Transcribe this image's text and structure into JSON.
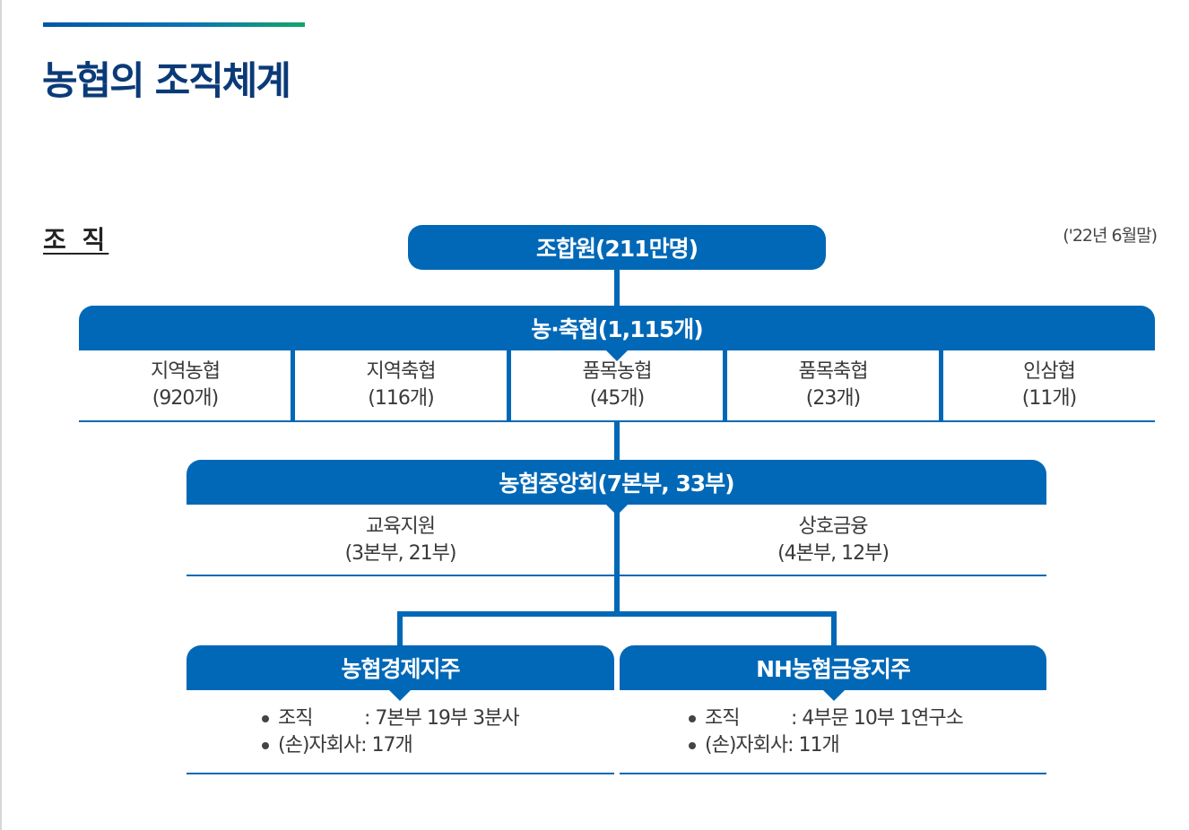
{
  "header": {
    "title": "농협의 조직체계",
    "section_label": "조 직",
    "date_note": "('22년 6월말)"
  },
  "chart": {
    "members": "조합원(211만명)",
    "coops": {
      "label": "농·축협(1,115개)",
      "units": [
        {
          "name": "지역농협",
          "count": "(920개)"
        },
        {
          "name": "지역축협",
          "count": "(116개)"
        },
        {
          "name": "품목농협",
          "count": "(45개)"
        },
        {
          "name": "품목축협",
          "count": "(23개)"
        },
        {
          "name": "인삼협",
          "count": "(11개)"
        }
      ]
    },
    "central": {
      "label": "농협중앙회(7본부, 33부)",
      "divisions": [
        {
          "name": "교육지원",
          "detail": "(3본부, 21부)"
        },
        {
          "name": "상호금융",
          "detail": "(4본부, 12부)"
        }
      ]
    },
    "holdings": [
      {
        "label": "농협경제지주",
        "org_key": "조직",
        "org_value": ": 7본부 19부 3분사",
        "sub_key": "(손)자회사",
        "sub_value": ": 17개"
      },
      {
        "label": "NH농협금융지주",
        "org_key": "조직",
        "org_value": ": 4부문 10부 1연구소",
        "sub_key": "(손)자회사",
        "sub_value": ": 11개"
      }
    ]
  },
  "colors": {
    "primary": "#0068b7",
    "title": "#0b3a78",
    "gradient_end": "#13a56a"
  }
}
